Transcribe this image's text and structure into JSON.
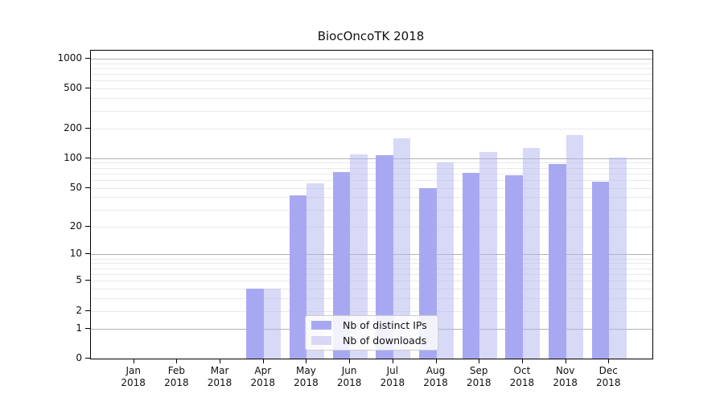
{
  "chart_data": {
    "type": "bar",
    "title": "BiocOncoTK 2018",
    "categories": [
      "Jan 2018",
      "Feb 2018",
      "Mar 2018",
      "Apr 2018",
      "May 2018",
      "Jun 2018",
      "Jul 2018",
      "Aug 2018",
      "Sep 2018",
      "Oct 2018",
      "Nov 2018",
      "Dec 2018"
    ],
    "series": [
      {
        "name": "Nb of distinct IPs",
        "color": "#a8a8f2",
        "fill": "#a8a8f2",
        "values": [
          0,
          0,
          0,
          4,
          42,
          72,
          107,
          50,
          71,
          67,
          88,
          58
        ]
      },
      {
        "name": "Nb of downloads",
        "color": "#d8d8f6",
        "fill": "rgba(177,177,240,0.5)",
        "values": [
          0,
          0,
          0,
          4,
          56,
          110,
          160,
          91,
          116,
          127,
          172,
          102
        ]
      }
    ],
    "xlabel": "",
    "ylabel": "",
    "y_scale": "log1p",
    "y_ticks": [
      0,
      1,
      2,
      5,
      10,
      20,
      50,
      100,
      200,
      500,
      1000
    ],
    "ylim": [
      0,
      1200
    ],
    "grid": "both",
    "legend": {
      "position": "lower-center",
      "entries": [
        "Nb of distinct IPs",
        "Nb of downloads"
      ]
    },
    "colors": {
      "axis": "#000000",
      "grid_major": "#b2b2b2",
      "grid_minor": "#e9e9e9",
      "background": "#ffffff"
    }
  }
}
